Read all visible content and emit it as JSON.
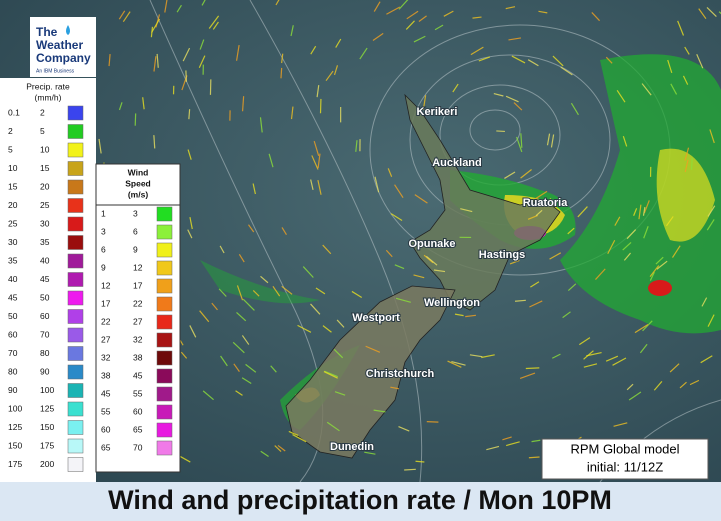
{
  "logo": {
    "lines": [
      "The",
      "Weather",
      "Company"
    ],
    "tagline": "An IBM Business"
  },
  "precip_legend": {
    "title": "Precip. rate",
    "units": "(mm/h)",
    "rows": [
      {
        "low": 0.1,
        "high": 2,
        "color": "#3a44ee"
      },
      {
        "low": 2,
        "high": 5,
        "color": "#22cc22"
      },
      {
        "low": 5,
        "high": 10,
        "color": "#f2f21a"
      },
      {
        "low": 10,
        "high": 15,
        "color": "#c8a41a"
      },
      {
        "low": 15,
        "high": 20,
        "color": "#c8781a"
      },
      {
        "low": 20,
        "high": 25,
        "color": "#e8321a"
      },
      {
        "low": 25,
        "high": 30,
        "color": "#d81a1a"
      },
      {
        "low": 30,
        "high": 35,
        "color": "#9a0e0e"
      },
      {
        "low": 35,
        "high": 40,
        "color": "#a01a9a"
      },
      {
        "low": 40,
        "high": 45,
        "color": "#b01ab0"
      },
      {
        "low": 45,
        "high": 50,
        "color": "#ee1aee"
      },
      {
        "low": 50,
        "high": 60,
        "color": "#b040e8"
      },
      {
        "low": 60,
        "high": 70,
        "color": "#9a5ae8"
      },
      {
        "low": 70,
        "high": 80,
        "color": "#6a78e0"
      },
      {
        "low": 80,
        "high": 90,
        "color": "#2a8ac8"
      },
      {
        "low": 90,
        "high": 100,
        "color": "#1ab4b4"
      },
      {
        "low": 100,
        "high": 125,
        "color": "#3ae0d0"
      },
      {
        "low": 125,
        "high": 150,
        "color": "#7af0f0"
      },
      {
        "low": 150,
        "high": 175,
        "color": "#b8f8f8"
      },
      {
        "low": 175,
        "high": 200,
        "color": "#f4f4f8"
      }
    ]
  },
  "wind_legend": {
    "title_lines": [
      "Wind",
      "Speed",
      "(m/s)"
    ],
    "rows": [
      {
        "low": 1,
        "high": 3,
        "color": "#22dd22"
      },
      {
        "low": 3,
        "high": 6,
        "color": "#8cf03a"
      },
      {
        "low": 6,
        "high": 9,
        "color": "#f0f01a"
      },
      {
        "low": 9,
        "high": 12,
        "color": "#f0c81a"
      },
      {
        "low": 12,
        "high": 17,
        "color": "#f0a01a"
      },
      {
        "low": 17,
        "high": 22,
        "color": "#f07a1a"
      },
      {
        "low": 22,
        "high": 27,
        "color": "#e8281a"
      },
      {
        "low": 27,
        "high": 32,
        "color": "#a81414"
      },
      {
        "low": 32,
        "high": 38,
        "color": "#6e0a0a"
      },
      {
        "low": 38,
        "high": 45,
        "color": "#8a0a5a"
      },
      {
        "low": 45,
        "high": 55,
        "color": "#a01a8a"
      },
      {
        "low": 55,
        "high": 60,
        "color": "#c81ab8"
      },
      {
        "low": 60,
        "high": 65,
        "color": "#e81ae0"
      },
      {
        "low": 65,
        "high": 70,
        "color": "#f07ae8"
      }
    ]
  },
  "cities": [
    "Kerikeri",
    "Auckland",
    "Ruatoria",
    "Opunake",
    "Hastings",
    "Wellington",
    "Westport",
    "Christchurch",
    "Dunedin"
  ],
  "model_box": {
    "lines": [
      "RPM Global model",
      "initial: 11/12Z"
    ]
  },
  "footer": {
    "title": "Wind and precipitation rate / Mon 10PM"
  }
}
